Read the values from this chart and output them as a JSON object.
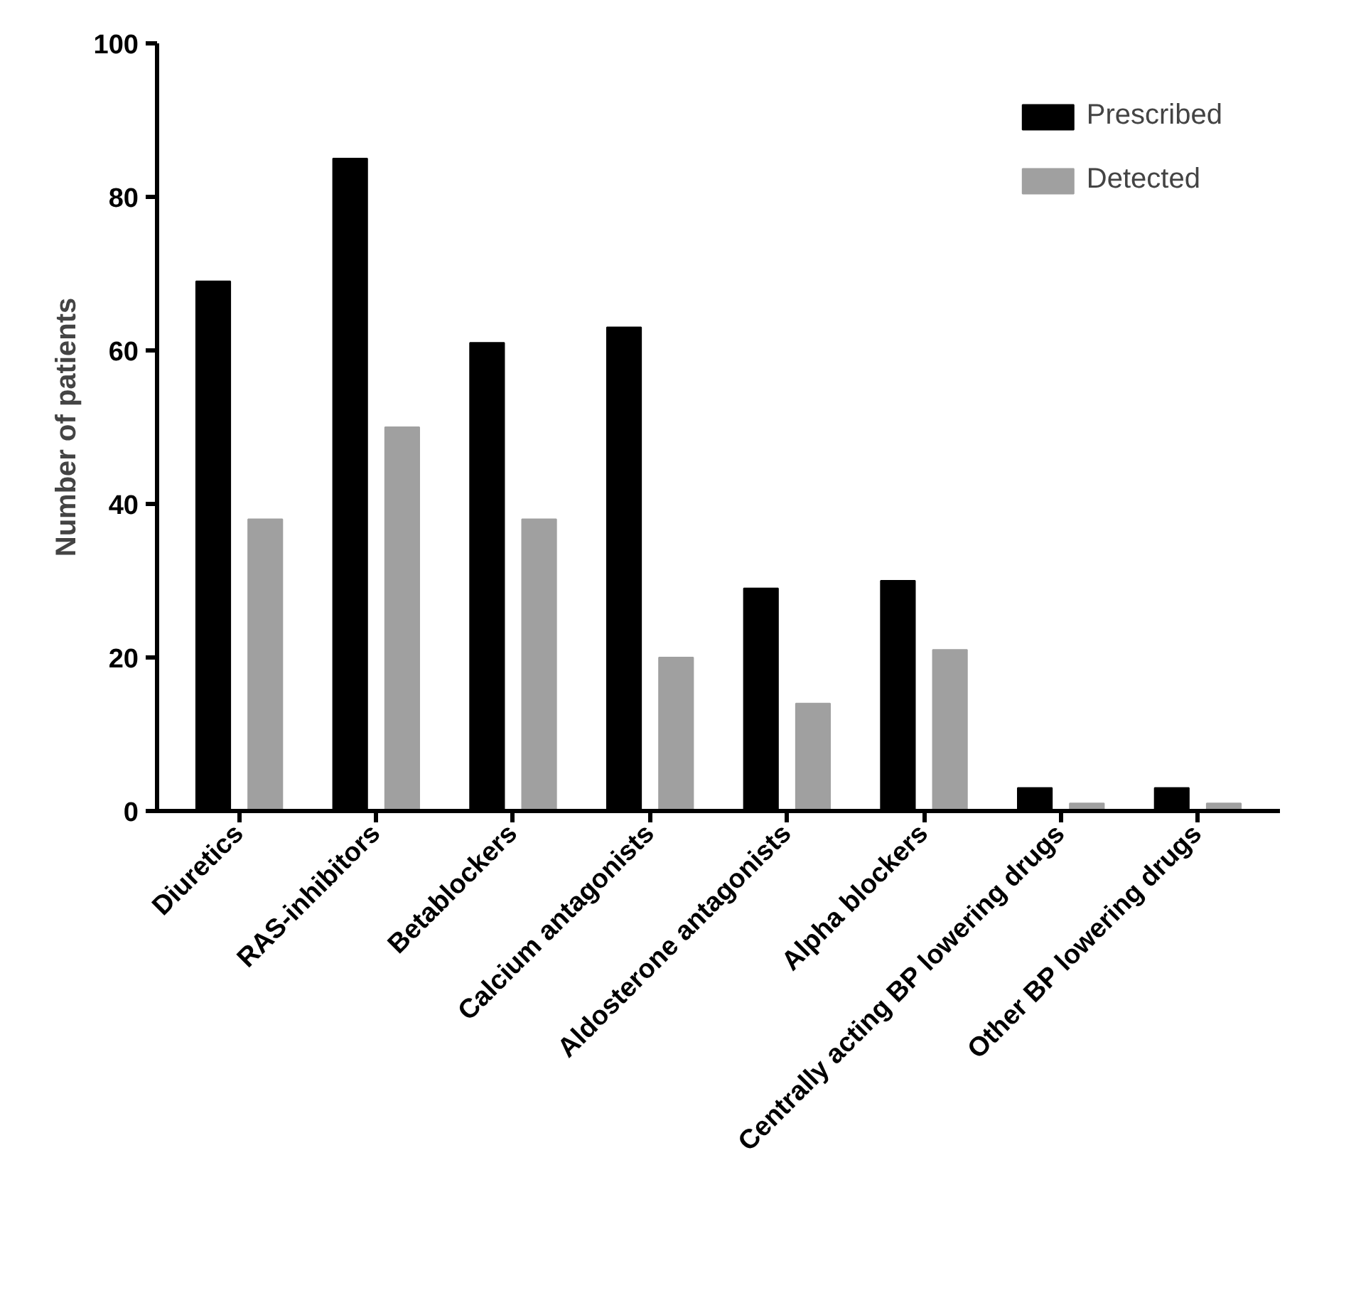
{
  "chart_data": {
    "type": "bar",
    "ylabel": "Number of patients",
    "categories": [
      "Diuretics",
      "RAS-inhibitors",
      "Betablockers",
      "Calcium antagonists",
      "Aldosterone antagonists",
      "Alpha blockers",
      "Centrally acting BP lowering drugs",
      "Other BP lowering drugs"
    ],
    "series": [
      {
        "name": "Prescribed",
        "color": "#000000",
        "values": [
          69,
          85,
          61,
          63,
          29,
          30,
          3,
          3
        ]
      },
      {
        "name": "Detected",
        "color": "#a0a0a0",
        "values": [
          38,
          50,
          38,
          20,
          14,
          21,
          1,
          1
        ]
      }
    ],
    "ylim": [
      0,
      100
    ],
    "yticks": [
      0,
      20,
      40,
      60,
      80,
      100
    ],
    "grid": false,
    "legend": "top right"
  }
}
